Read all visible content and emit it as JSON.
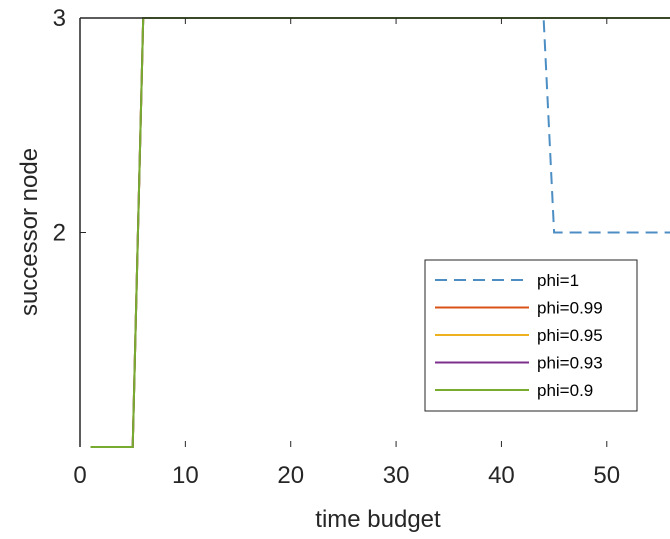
{
  "chart_data": {
    "type": "line",
    "xlabel": "time budget",
    "ylabel": "successor node",
    "xlim": [
      0,
      56
    ],
    "ylim": [
      1,
      3
    ],
    "x_ticks": [
      "0",
      "10",
      "20",
      "30",
      "40",
      "50"
    ],
    "y_ticks": [
      "2",
      "3"
    ],
    "x_tick_values": [
      0,
      10,
      20,
      30,
      40,
      50
    ],
    "y_tick_values": [
      2,
      3
    ],
    "grid": false,
    "legend_position": "bottom-right",
    "series": [
      {
        "name": "phi=1",
        "color": "#4c8ec4",
        "dash": true,
        "x": [
          1,
          5,
          6,
          44,
          45,
          56
        ],
        "y": [
          1,
          1,
          3,
          3,
          2,
          2
        ]
      },
      {
        "name": "phi=0.99",
        "color": "#d95319",
        "dash": false,
        "x": [
          1,
          5,
          6,
          56
        ],
        "y": [
          1,
          1,
          3,
          3
        ]
      },
      {
        "name": "phi=0.95",
        "color": "#edb120",
        "dash": false,
        "x": [
          1,
          5,
          6,
          56
        ],
        "y": [
          1,
          1,
          3,
          3
        ]
      },
      {
        "name": "phi=0.93",
        "color": "#7e2f8e",
        "dash": false,
        "x": [
          1,
          5,
          6,
          56
        ],
        "y": [
          1,
          1,
          3,
          3
        ]
      },
      {
        "name": "phi=0.9",
        "color": "#77ac30",
        "dash": false,
        "x": [
          1,
          5,
          6,
          56
        ],
        "y": [
          1,
          1,
          3,
          3
        ]
      }
    ]
  }
}
